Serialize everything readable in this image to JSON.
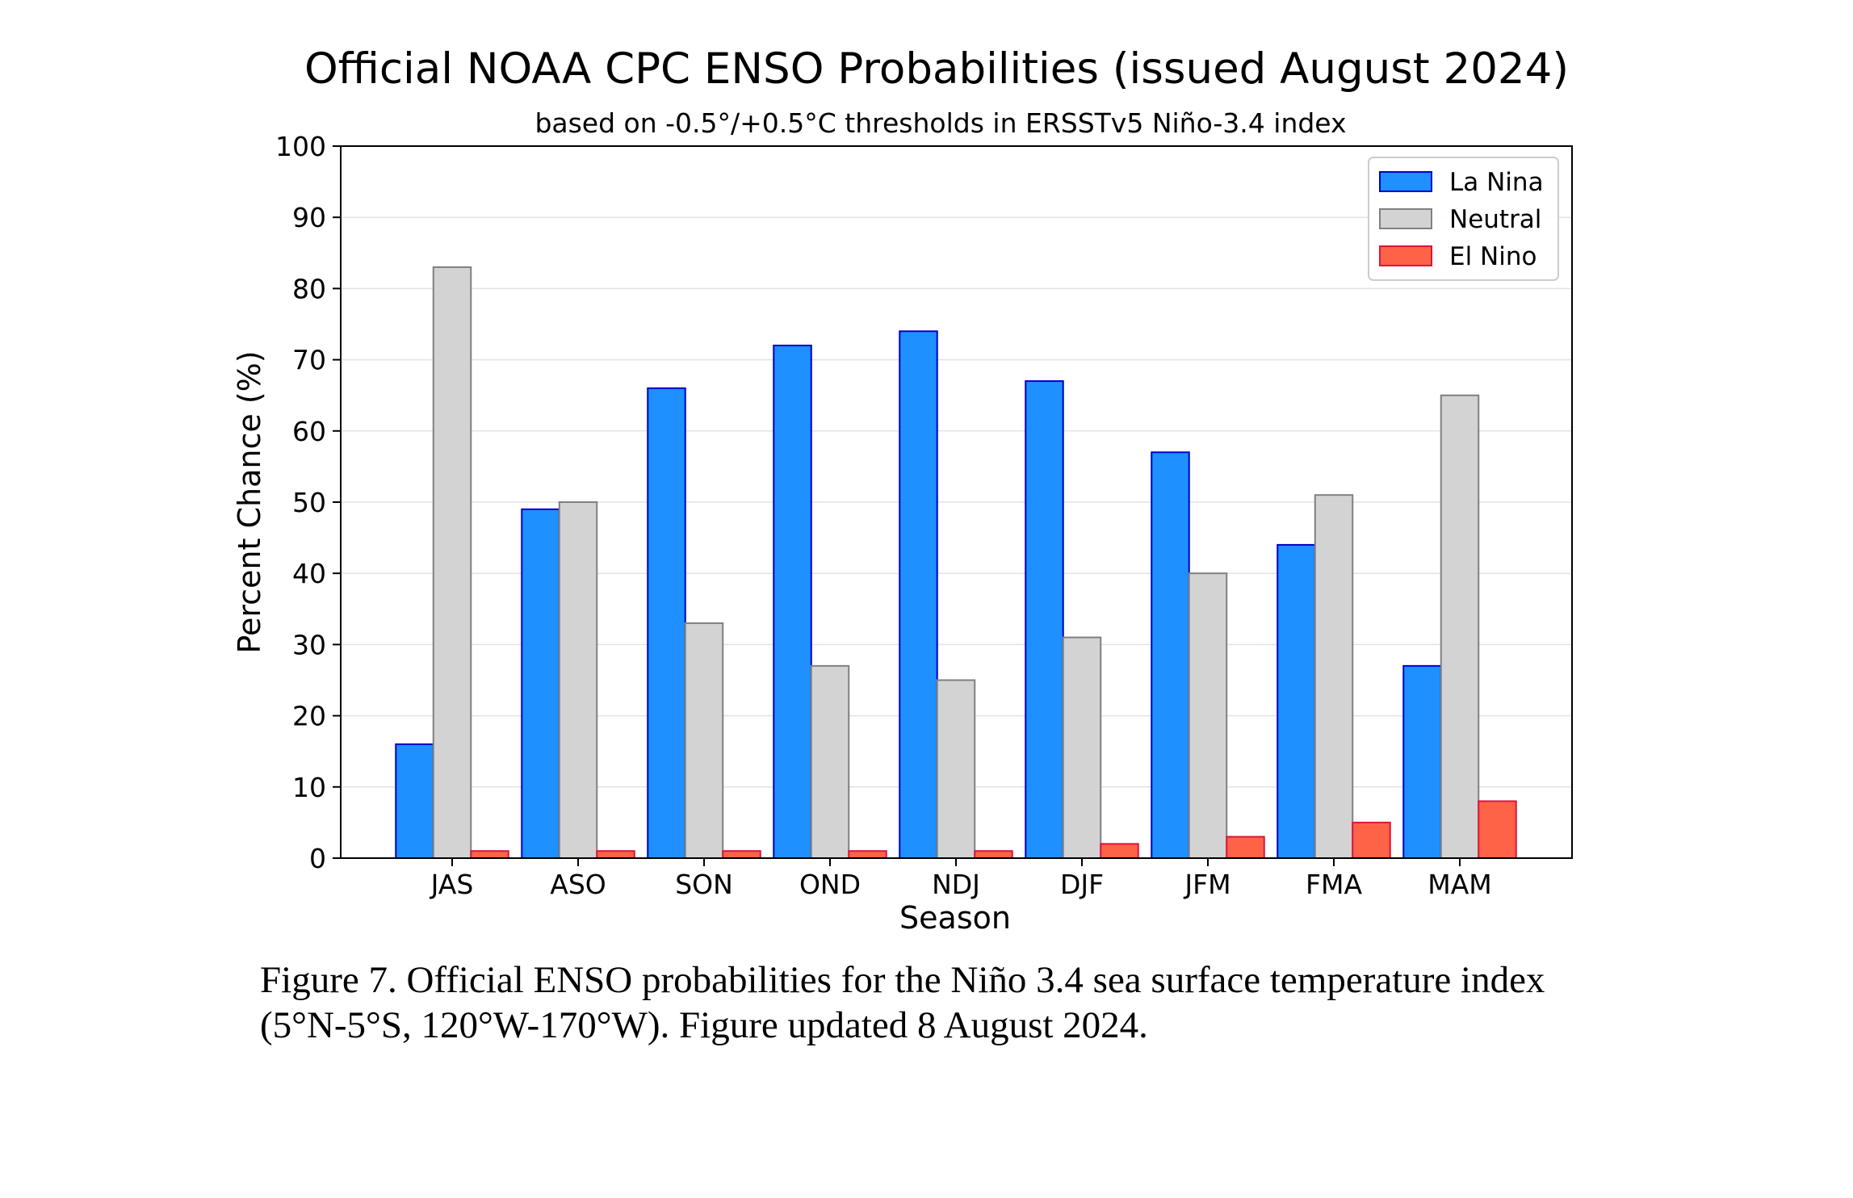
{
  "chart_data": {
    "type": "bar",
    "title": "Official NOAA CPC ENSO Probabilities (issued August 2024)",
    "subtitle": "based on -0.5°/+0.5°C thresholds in ERSSTv5 Niño-3.4 index",
    "xlabel": "Season",
    "ylabel": "Percent Chance (%)",
    "ylim": [
      0,
      100
    ],
    "yticks": [
      0,
      10,
      20,
      30,
      40,
      50,
      60,
      70,
      80,
      90,
      100
    ],
    "grid": true,
    "legend_position": "top-right",
    "categories": [
      "JAS",
      "ASO",
      "SON",
      "OND",
      "NDJ",
      "DJF",
      "JFM",
      "FMA",
      "MAM"
    ],
    "series": [
      {
        "name": "La Nina",
        "color": "#1e90ff",
        "edge": "#0000cd",
        "values": [
          16,
          49,
          66,
          72,
          74,
          67,
          57,
          44,
          27
        ]
      },
      {
        "name": "Neutral",
        "color": "#d3d3d3",
        "edge": "#808080",
        "values": [
          83,
          50,
          33,
          27,
          25,
          31,
          40,
          51,
          65
        ]
      },
      {
        "name": "El Nino",
        "color": "#ff6347",
        "edge": "#dc143c",
        "values": [
          1,
          1,
          1,
          1,
          1,
          2,
          3,
          5,
          8
        ]
      }
    ]
  },
  "caption": {
    "line1": "Figure 7. Official ENSO probabilities for the Niño 3.4 sea surface temperature index",
    "line2": "(5°N-5°S, 120°W-170°W). Figure updated 8 August 2024."
  }
}
